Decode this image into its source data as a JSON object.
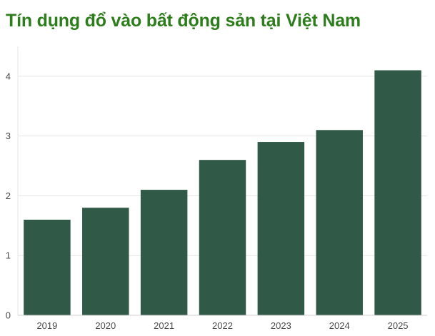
{
  "colors": {
    "title": "#2e7d1c",
    "bar": "#315947",
    "grid": "#e6e6e6",
    "axis": "#cfcfcf",
    "tick_text": "#4a4a4a"
  },
  "chart_data": {
    "type": "bar",
    "title": "Tín dụng đổ vào bất động sản tại Việt Nam",
    "xlabel": "",
    "ylabel": "",
    "categories": [
      "2019",
      "2020",
      "2021",
      "2022",
      "2023",
      "2024",
      "2025"
    ],
    "values": [
      1.6,
      1.8,
      2.1,
      2.6,
      2.9,
      3.1,
      4.1
    ],
    "ylim": [
      0,
      4.5
    ],
    "yticks": [
      "0",
      "1",
      "2",
      "3",
      "4"
    ],
    "grid": true,
    "legend": "none"
  }
}
